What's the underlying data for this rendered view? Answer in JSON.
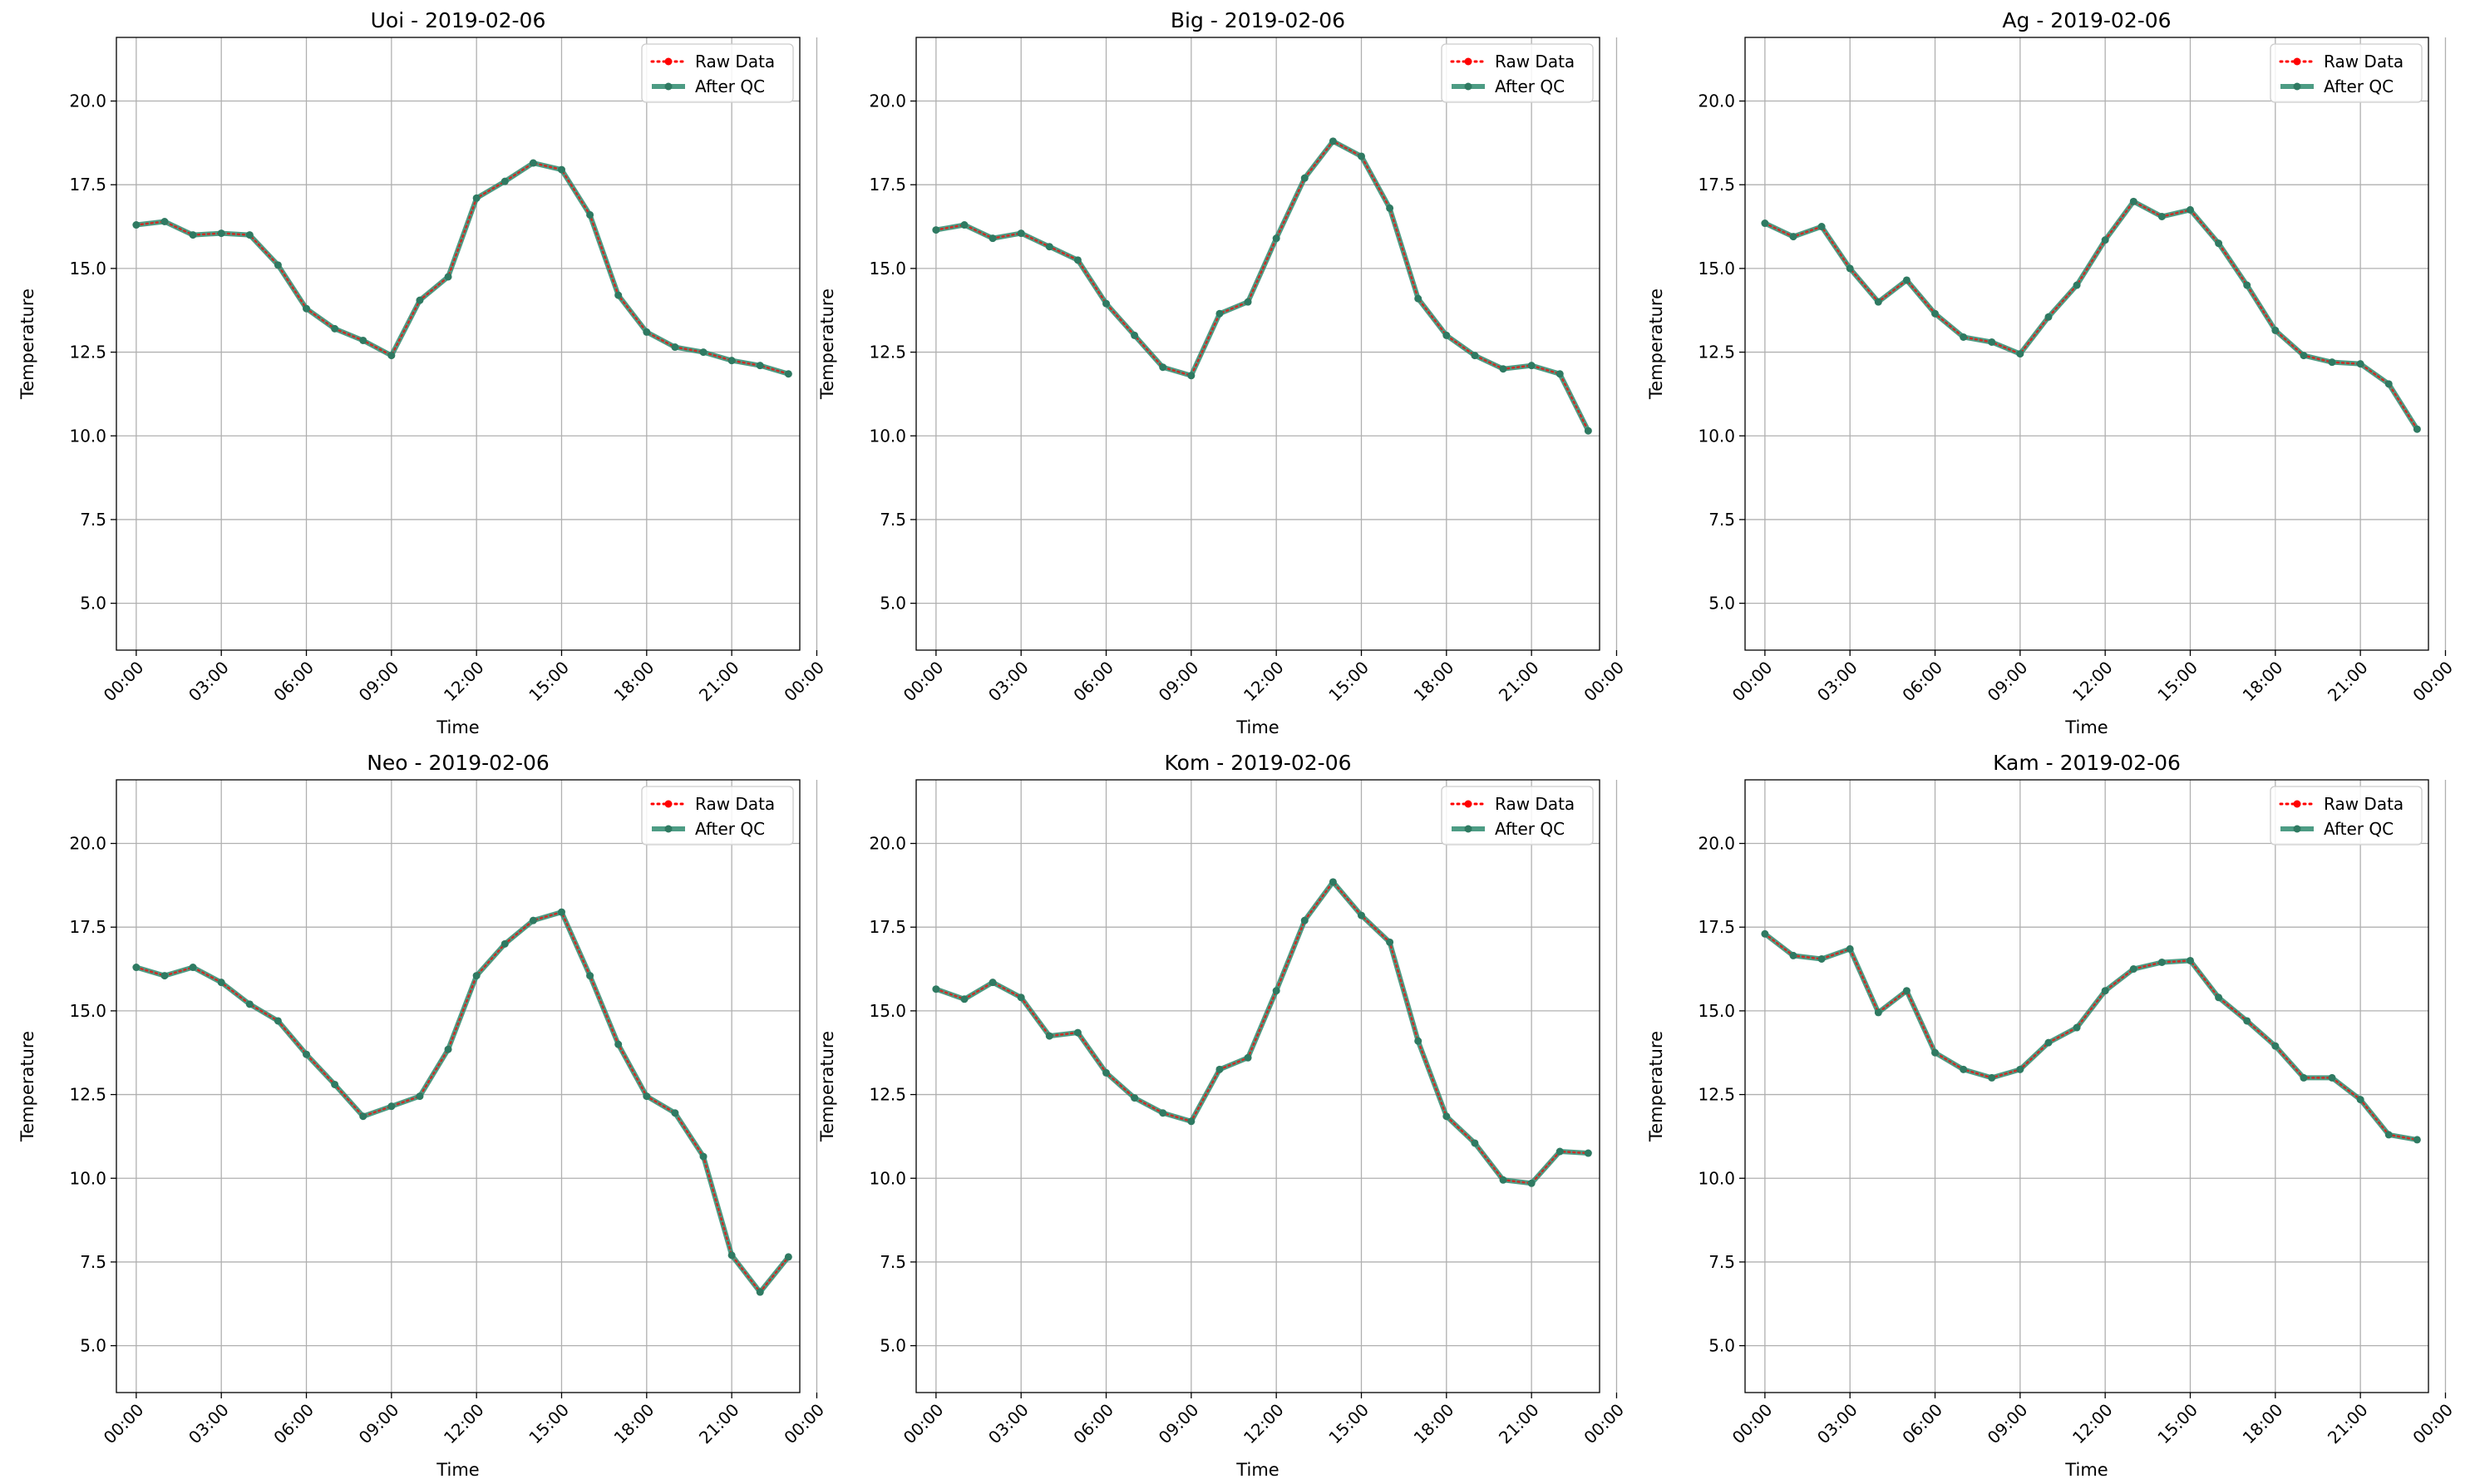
{
  "figure": {
    "colors": {
      "raw": "#ff0000",
      "qc": "#2e8b6e",
      "grid": "#b0b0b0",
      "axis": "#000000"
    },
    "legend_labels": [
      "Raw Data",
      "After QC"
    ],
    "legend_placement": "top-right"
  },
  "chart_data": [
    {
      "type": "line",
      "title": "Uoi - 2019-02-06",
      "xlabel": "Time",
      "ylabel": "Temperature",
      "x_hours": [
        0,
        1,
        2,
        3,
        4,
        5,
        6,
        7,
        8,
        9,
        10,
        11,
        12,
        13,
        14,
        15,
        16,
        17,
        18,
        19,
        20,
        21,
        22,
        23
      ],
      "xticks": [
        "00:00",
        "03:00",
        "06:00",
        "09:00",
        "12:00",
        "15:00",
        "18:00",
        "21:00",
        "00:00"
      ],
      "yticks": [
        "5.0",
        "7.5",
        "10.0",
        "12.5",
        "15.0",
        "17.5",
        "20.0"
      ],
      "ylim": [
        3.6,
        21.9
      ],
      "grid": true,
      "series": [
        {
          "name": "Raw Data",
          "values": [
            16.3,
            16.4,
            16.0,
            16.05,
            16.0,
            15.1,
            13.8,
            13.2,
            12.85,
            12.4,
            14.05,
            14.75,
            17.1,
            17.6,
            18.15,
            17.95,
            16.6,
            14.2,
            13.1,
            12.65,
            12.5,
            12.25,
            12.1,
            11.85
          ]
        },
        {
          "name": "After QC",
          "values": [
            16.3,
            16.4,
            16.0,
            16.05,
            16.0,
            15.1,
            13.8,
            13.2,
            12.85,
            12.4,
            14.05,
            14.75,
            17.1,
            17.6,
            18.15,
            17.95,
            16.6,
            14.2,
            13.1,
            12.65,
            12.5,
            12.25,
            12.1,
            11.85
          ]
        }
      ]
    },
    {
      "type": "line",
      "title": "Big - 2019-02-06",
      "xlabel": "Time",
      "ylabel": "Temperature",
      "x_hours": [
        0,
        1,
        2,
        3,
        4,
        5,
        6,
        7,
        8,
        9,
        10,
        11,
        12,
        13,
        14,
        15,
        16,
        17,
        18,
        19,
        20,
        21,
        22,
        23
      ],
      "xticks": [
        "00:00",
        "03:00",
        "06:00",
        "09:00",
        "12:00",
        "15:00",
        "18:00",
        "21:00",
        "00:00"
      ],
      "yticks": [
        "5.0",
        "7.5",
        "10.0",
        "12.5",
        "15.0",
        "17.5",
        "20.0"
      ],
      "ylim": [
        3.6,
        21.9
      ],
      "grid": true,
      "series": [
        {
          "name": "Raw Data",
          "values": [
            16.15,
            16.3,
            15.9,
            16.05,
            15.65,
            15.25,
            13.95,
            13.0,
            12.05,
            11.8,
            13.65,
            14.0,
            15.9,
            17.7,
            18.8,
            18.35,
            16.8,
            14.1,
            13.0,
            12.4,
            12.0,
            12.1,
            11.85,
            10.15
          ]
        },
        {
          "name": "After QC",
          "values": [
            16.15,
            16.3,
            15.9,
            16.05,
            15.65,
            15.25,
            13.95,
            13.0,
            12.05,
            11.8,
            13.65,
            14.0,
            15.9,
            17.7,
            18.8,
            18.35,
            16.8,
            14.1,
            13.0,
            12.4,
            12.0,
            12.1,
            11.85,
            10.15
          ]
        }
      ]
    },
    {
      "type": "line",
      "title": "Ag - 2019-02-06",
      "xlabel": "Time",
      "ylabel": "Temperature",
      "x_hours": [
        0,
        1,
        2,
        3,
        4,
        5,
        6,
        7,
        8,
        9,
        10,
        11,
        12,
        13,
        14,
        15,
        16,
        17,
        18,
        19,
        20,
        21,
        22,
        23
      ],
      "xticks": [
        "00:00",
        "03:00",
        "06:00",
        "09:00",
        "12:00",
        "15:00",
        "18:00",
        "21:00",
        "00:00"
      ],
      "yticks": [
        "5.0",
        "7.5",
        "10.0",
        "12.5",
        "15.0",
        "17.5",
        "20.0"
      ],
      "ylim": [
        3.6,
        21.9
      ],
      "grid": true,
      "series": [
        {
          "name": "Raw Data",
          "values": [
            16.35,
            15.95,
            16.25,
            15.0,
            14.0,
            14.65,
            13.65,
            12.95,
            12.8,
            12.45,
            13.55,
            14.5,
            15.85,
            17.0,
            16.55,
            16.75,
            15.75,
            14.5,
            13.15,
            12.4,
            12.2,
            12.15,
            11.55,
            10.2
          ]
        },
        {
          "name": "After QC",
          "values": [
            16.35,
            15.95,
            16.25,
            15.0,
            14.0,
            14.65,
            13.65,
            12.95,
            12.8,
            12.45,
            13.55,
            14.5,
            15.85,
            17.0,
            16.55,
            16.75,
            15.75,
            14.5,
            13.15,
            12.4,
            12.2,
            12.15,
            11.55,
            10.2
          ]
        }
      ]
    },
    {
      "type": "line",
      "title": "Neo - 2019-02-06",
      "xlabel": "Time",
      "ylabel": "Temperature",
      "x_hours": [
        0,
        1,
        2,
        3,
        4,
        5,
        6,
        7,
        8,
        9,
        10,
        11,
        12,
        13,
        14,
        15,
        16,
        17,
        18,
        19,
        20,
        21,
        22,
        23
      ],
      "xticks": [
        "00:00",
        "03:00",
        "06:00",
        "09:00",
        "12:00",
        "15:00",
        "18:00",
        "21:00",
        "00:00"
      ],
      "yticks": [
        "5.0",
        "7.5",
        "10.0",
        "12.5",
        "15.0",
        "17.5",
        "20.0"
      ],
      "ylim": [
        3.6,
        21.9
      ],
      "grid": true,
      "series": [
        {
          "name": "Raw Data",
          "values": [
            16.3,
            16.05,
            16.3,
            15.85,
            15.2,
            14.7,
            13.7,
            12.8,
            11.85,
            12.15,
            12.45,
            13.85,
            16.05,
            17.0,
            17.7,
            17.95,
            16.05,
            14.0,
            12.45,
            11.95,
            10.65,
            7.7,
            6.6,
            7.65
          ]
        },
        {
          "name": "After QC",
          "values": [
            16.3,
            16.05,
            16.3,
            15.85,
            15.2,
            14.7,
            13.7,
            12.8,
            11.85,
            12.15,
            12.45,
            13.85,
            16.05,
            17.0,
            17.7,
            17.95,
            16.05,
            14.0,
            12.45,
            11.95,
            10.65,
            7.7,
            6.6,
            7.65
          ]
        }
      ]
    },
    {
      "type": "line",
      "title": "Kom - 2019-02-06",
      "xlabel": "Time",
      "ylabel": "Temperature",
      "x_hours": [
        0,
        1,
        2,
        3,
        4,
        5,
        6,
        7,
        8,
        9,
        10,
        11,
        12,
        13,
        14,
        15,
        16,
        17,
        18,
        19,
        20,
        21,
        22,
        23
      ],
      "xticks": [
        "00:00",
        "03:00",
        "06:00",
        "09:00",
        "12:00",
        "15:00",
        "18:00",
        "21:00",
        "00:00"
      ],
      "yticks": [
        "5.0",
        "7.5",
        "10.0",
        "12.5",
        "15.0",
        "17.5",
        "20.0"
      ],
      "ylim": [
        3.6,
        21.9
      ],
      "grid": true,
      "series": [
        {
          "name": "Raw Data",
          "values": [
            15.65,
            15.35,
            15.85,
            15.4,
            14.25,
            14.35,
            13.15,
            12.4,
            11.95,
            11.7,
            13.25,
            13.6,
            15.6,
            17.7,
            18.85,
            17.85,
            17.05,
            14.1,
            11.85,
            11.05,
            9.95,
            9.85,
            10.8,
            10.75
          ]
        },
        {
          "name": "After QC",
          "values": [
            15.65,
            15.35,
            15.85,
            15.4,
            14.25,
            14.35,
            13.15,
            12.4,
            11.95,
            11.7,
            13.25,
            13.6,
            15.6,
            17.7,
            18.85,
            17.85,
            17.05,
            14.1,
            11.85,
            11.05,
            9.95,
            9.85,
            10.8,
            10.75
          ]
        }
      ]
    },
    {
      "type": "line",
      "title": "Kam - 2019-02-06",
      "xlabel": "Time",
      "ylabel": "Temperature",
      "x_hours": [
        0,
        1,
        2,
        3,
        4,
        5,
        6,
        7,
        8,
        9,
        10,
        11,
        12,
        13,
        14,
        15,
        16,
        17,
        18,
        19,
        20,
        21,
        22,
        23
      ],
      "xticks": [
        "00:00",
        "03:00",
        "06:00",
        "09:00",
        "12:00",
        "15:00",
        "18:00",
        "21:00",
        "00:00"
      ],
      "yticks": [
        "5.0",
        "7.5",
        "10.0",
        "12.5",
        "15.0",
        "17.5",
        "20.0"
      ],
      "ylim": [
        3.6,
        21.9
      ],
      "grid": true,
      "series": [
        {
          "name": "Raw Data",
          "values": [
            17.3,
            16.65,
            16.55,
            16.85,
            14.95,
            15.6,
            13.75,
            13.25,
            13.0,
            13.25,
            14.05,
            14.5,
            15.6,
            16.25,
            16.45,
            16.5,
            15.4,
            14.7,
            13.95,
            13.0,
            13.0,
            12.35,
            11.3,
            11.15
          ]
        },
        {
          "name": "After QC",
          "values": [
            17.3,
            16.65,
            16.55,
            16.85,
            14.95,
            15.6,
            13.75,
            13.25,
            13.0,
            13.25,
            14.05,
            14.5,
            15.6,
            16.25,
            16.45,
            16.5,
            15.4,
            14.7,
            13.95,
            13.0,
            13.0,
            12.35,
            11.3,
            11.15
          ]
        }
      ]
    }
  ]
}
